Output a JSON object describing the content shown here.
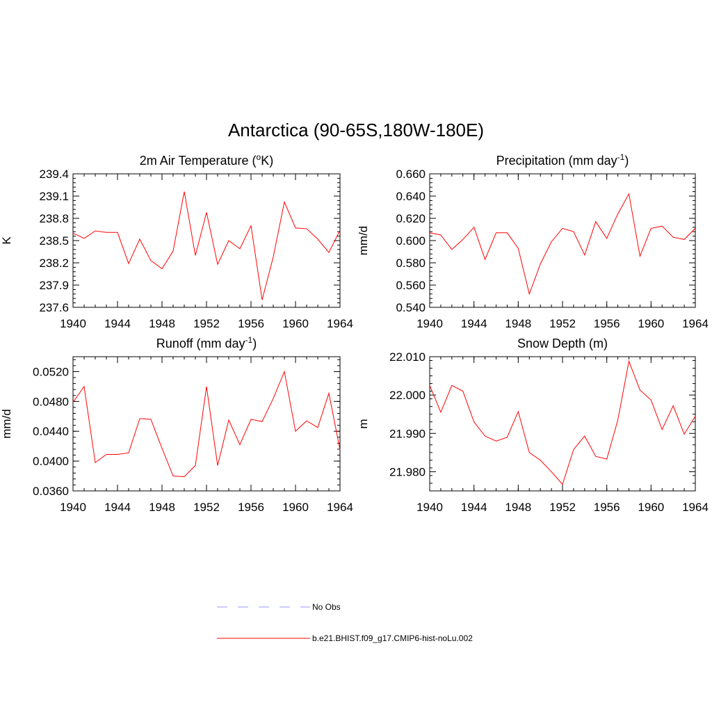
{
  "figure": {
    "title": "Antarctica (90-65S,180W-180E)"
  },
  "legend": {
    "placement": "bottom-center",
    "entries": [
      {
        "label": "No Obs",
        "color": "#9999ff",
        "dash": true
      },
      {
        "label": "b.e21.BHIST.f09_g17.CMIP6-hist-noLu.002",
        "color": "#ff0000",
        "dash": false
      }
    ]
  },
  "chart_data": [
    {
      "type": "line",
      "title": "2m Air Temperature (",
      "title_sup": "o",
      "title_end": "K)",
      "ylabel": "K",
      "x": [
        1940,
        1941,
        1942,
        1943,
        1944,
        1945,
        1946,
        1947,
        1948,
        1949,
        1950,
        1951,
        1952,
        1953,
        1954,
        1955,
        1956,
        1957,
        1958,
        1959,
        1960,
        1961,
        1962,
        1963,
        1964
      ],
      "ylim": [
        237.6,
        239.4
      ],
      "xlim": [
        1940,
        1964
      ],
      "yticks": [
        "239.4",
        "239.1",
        "238.8",
        "238.5",
        "238.2",
        "237.9",
        "237.6"
      ],
      "xticks": [
        "1940",
        "1944",
        "1948",
        "1952",
        "1956",
        "1960",
        "1964"
      ],
      "series": [
        {
          "color": "#ff0000",
          "values": [
            238.6,
            238.53,
            238.63,
            238.61,
            238.61,
            238.19,
            238.52,
            238.23,
            238.12,
            238.36,
            239.16,
            238.3,
            238.88,
            238.18,
            238.5,
            238.39,
            238.7,
            237.7,
            238.28,
            239.02,
            238.67,
            238.66,
            238.52,
            238.34,
            238.64
          ]
        }
      ]
    },
    {
      "type": "line",
      "title": "Precipitation (mm day",
      "title_sup": "-1",
      "title_end": ")",
      "ylabel": "mm/d",
      "x": [
        1940,
        1941,
        1942,
        1943,
        1944,
        1945,
        1946,
        1947,
        1948,
        1949,
        1950,
        1951,
        1952,
        1953,
        1954,
        1955,
        1956,
        1957,
        1958,
        1959,
        1960,
        1961,
        1962,
        1963,
        1964
      ],
      "ylim": [
        0.54,
        0.66
      ],
      "xlim": [
        1940,
        1964
      ],
      "yticks": [
        "0.660",
        "0.640",
        "0.620",
        "0.600",
        "0.580",
        "0.560",
        "0.540"
      ],
      "xticks": [
        "1940",
        "1944",
        "1948",
        "1952",
        "1956",
        "1960",
        "1964"
      ],
      "series": [
        {
          "color": "#ff0000",
          "values": [
            0.607,
            0.605,
            0.592,
            0.601,
            0.612,
            0.583,
            0.607,
            0.607,
            0.593,
            0.552,
            0.579,
            0.599,
            0.611,
            0.608,
            0.587,
            0.617,
            0.602,
            0.624,
            0.642,
            0.586,
            0.611,
            0.613,
            0.603,
            0.601,
            0.611
          ]
        }
      ]
    },
    {
      "type": "line",
      "title": "Runoff (mm day",
      "title_sup": "-1",
      "title_end": ")",
      "ylabel": "mm/d",
      "x": [
        1940,
        1941,
        1942,
        1943,
        1944,
        1945,
        1946,
        1947,
        1948,
        1949,
        1950,
        1951,
        1952,
        1953,
        1954,
        1955,
        1956,
        1957,
        1958,
        1959,
        1960,
        1961,
        1962,
        1963,
        1964
      ],
      "ylim": [
        0.036,
        0.054
      ],
      "xlim": [
        1940,
        1964
      ],
      "yticks": [
        "0.0520",
        "0.0480",
        "0.0440",
        "0.0400",
        "0.0360"
      ],
      "xticks": [
        "1940",
        "1944",
        "1948",
        "1952",
        "1956",
        "1960",
        "1964"
      ],
      "series": [
        {
          "color": "#ff0000",
          "values": [
            0.0479,
            0.05,
            0.0398,
            0.0409,
            0.0409,
            0.0411,
            0.0457,
            0.0456,
            0.0417,
            0.038,
            0.0379,
            0.0394,
            0.05,
            0.0394,
            0.0455,
            0.0422,
            0.0456,
            0.0453,
            0.0484,
            0.052,
            0.044,
            0.0454,
            0.0445,
            0.0491,
            0.0415
          ]
        }
      ]
    },
    {
      "type": "line",
      "title": "Snow Depth (m)",
      "title_sup": "",
      "title_end": "",
      "ylabel": "m",
      "x": [
        1940,
        1941,
        1942,
        1943,
        1944,
        1945,
        1946,
        1947,
        1948,
        1949,
        1950,
        1951,
        1952,
        1953,
        1954,
        1955,
        1956,
        1957,
        1958,
        1959,
        1960,
        1961,
        1962,
        1963,
        1964
      ],
      "ylim": [
        21.975,
        22.01
      ],
      "xlim": [
        1940,
        1964
      ],
      "yticks": [
        "22.010",
        "22.000",
        "21.990",
        "21.980"
      ],
      "xticks": [
        "1940",
        "1944",
        "1948",
        "1952",
        "1956",
        "1960",
        "1964"
      ],
      "series": [
        {
          "color": "#ff0000",
          "values": [
            22.0025,
            21.9955,
            22.0025,
            22.001,
            21.993,
            21.9893,
            21.988,
            21.989,
            21.9957,
            21.985,
            21.983,
            21.98,
            21.9767,
            21.9858,
            21.9893,
            21.984,
            21.9833,
            21.9935,
            22.0088,
            22.0013,
            21.9987,
            21.991,
            21.9972,
            21.9898,
            21.9945
          ]
        }
      ]
    }
  ]
}
